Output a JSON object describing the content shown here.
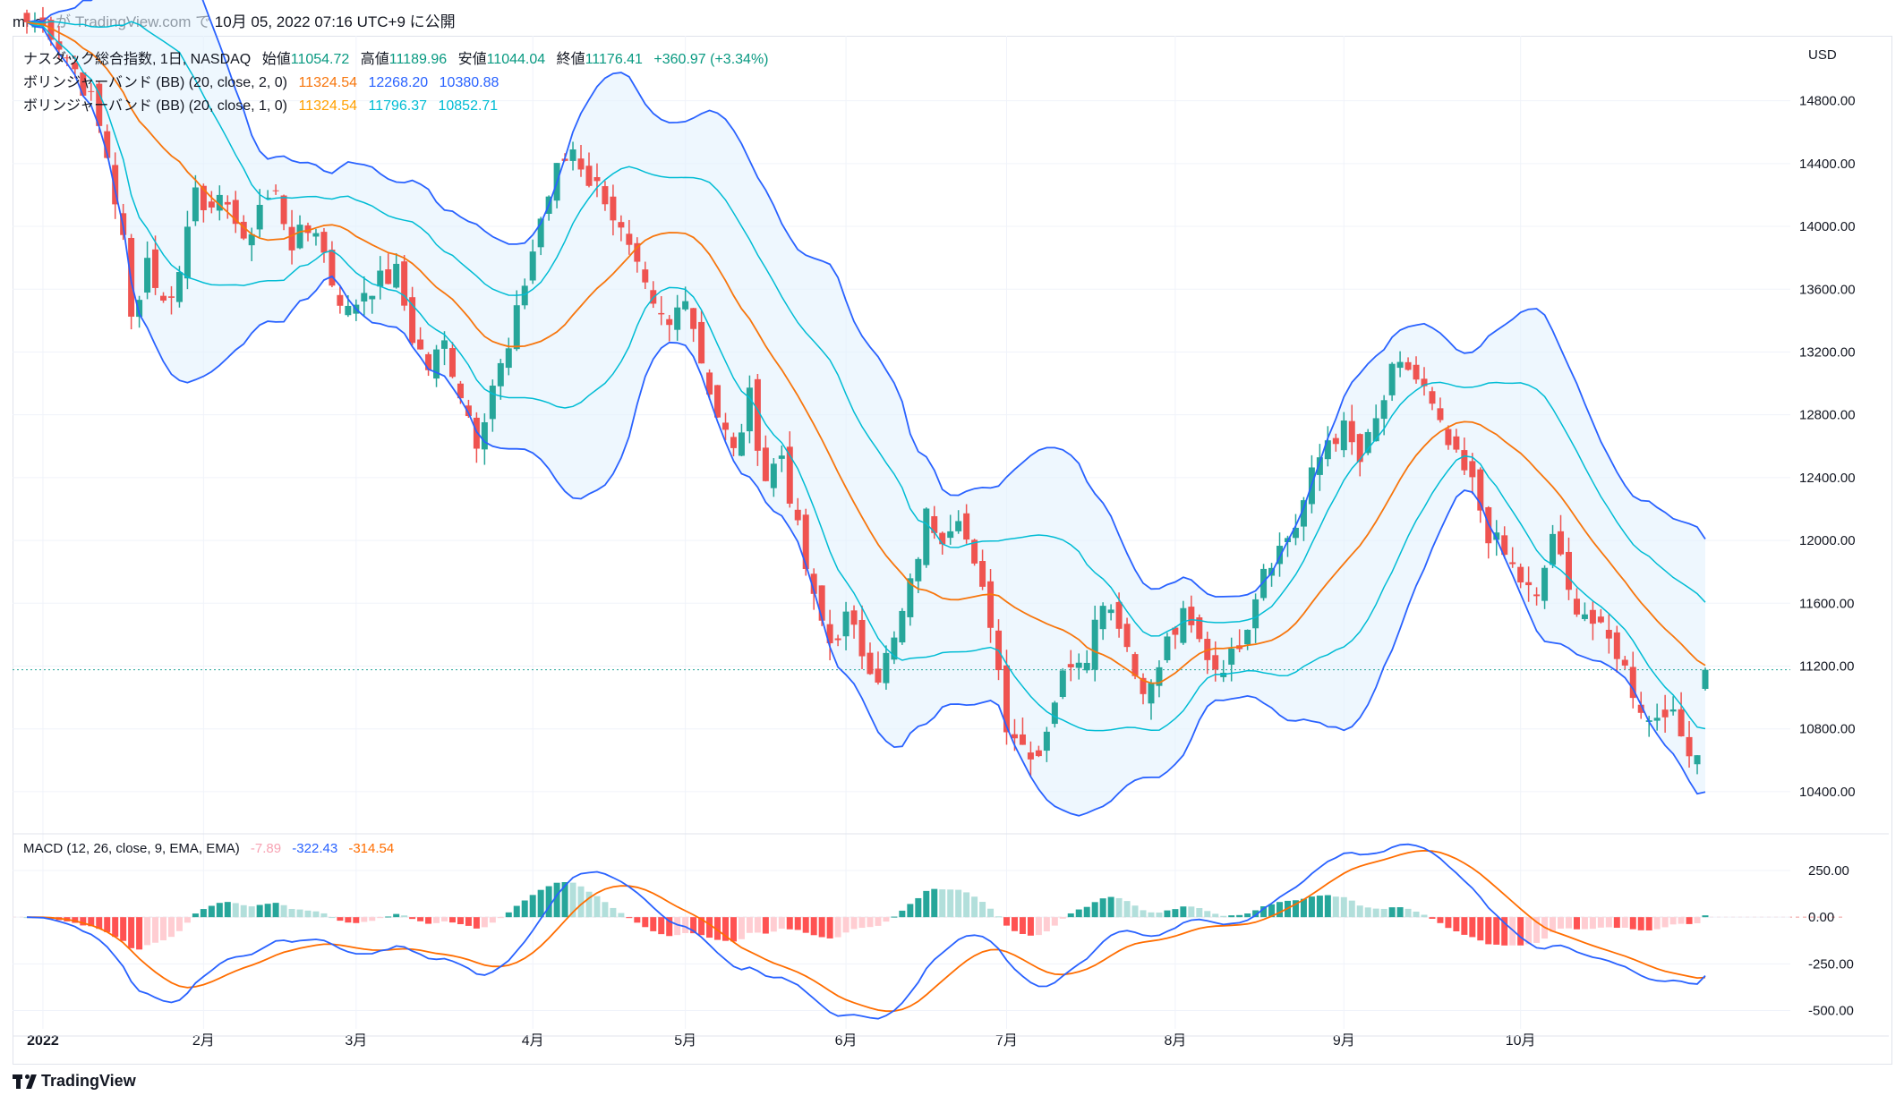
{
  "caption": "mf-aa が TradingView.com で 10月 05, 2022 07:16 UTC+9 に公開",
  "footer": {
    "brand": "TradingView",
    "logo_icon": "tradingview-logo-icon"
  },
  "legend": {
    "symbol": "ナスダック総合指数, 1日, NASDAQ",
    "open_label": "始値",
    "open": "11054.72",
    "high_label": "高値",
    "high": "11189.96",
    "low_label": "安値",
    "low": "11044.04",
    "close_label": "終値",
    "close": "11176.41",
    "change": "+360.97 (+3.34%)",
    "bb2_label": "ボリンジャーバンド (BB) (20, close, 2, 0)",
    "bb2_basis": "11324.54",
    "bb2_upper": "12268.20",
    "bb2_lower": "10380.88",
    "bb1_label": "ボリンジャーバンド (BB) (20, close, 1, 0)",
    "bb1_basis": "11324.54",
    "bb1_upper": "11796.37",
    "bb1_lower": "10852.71",
    "macd_label": "MACD (12, 26, close, 9, EMA, EMA)",
    "macd_hist": "-7.89",
    "macd_line": "-322.43",
    "macd_signal": "-314.54"
  },
  "colors": {
    "up": "#26a69a",
    "down": "#ef5350",
    "bb2": "#2962ff",
    "bb1": "#00bcd4",
    "basis": "#f7760d",
    "fill": "#e3f2fd",
    "macd": "#2962ff",
    "signal": "#ff6d00",
    "hist_up_strong": "#26a69a",
    "hist_up_weak": "#b2dfdb",
    "hist_down_strong": "#ff5252",
    "hist_down_weak": "#ffcdd2",
    "grid": "#f0f3fa"
  },
  "chart_data": {
    "type": "candlestick",
    "currency": "USD",
    "price_axis_ticks": [
      "14800.00",
      "14400.00",
      "14000.00",
      "13600.00",
      "13200.00",
      "12800.00",
      "12400.00",
      "12000.00",
      "11600.00",
      "11200.00",
      "10800.00",
      "10400.00"
    ],
    "price_ylim": [
      10200,
      15100
    ],
    "macd_axis_ticks": [
      "250.00",
      "0.00",
      "-250.00",
      "-500.00"
    ],
    "macd_ylim": [
      -550,
      360
    ],
    "time_axis_labels": [
      "2022",
      "2月",
      "3月",
      "4月",
      "5月",
      "6月",
      "7月",
      "8月",
      "9月",
      "10月"
    ],
    "time_axis_index": [
      2,
      22,
      41,
      63,
      82,
      102,
      122,
      143,
      164,
      186
    ],
    "last_price": 11176.41,
    "close_anchors": [
      [
        0,
        15300
      ],
      [
        3,
        15250
      ],
      [
        6,
        15000
      ],
      [
        8,
        14800
      ],
      [
        10,
        14450
      ],
      [
        12,
        13900
      ],
      [
        13,
        13400
      ],
      [
        15,
        13800
      ],
      [
        17,
        13500
      ],
      [
        19,
        13700
      ],
      [
        21,
        14300
      ],
      [
        23,
        14050
      ],
      [
        25,
        14200
      ],
      [
        27,
        13850
      ],
      [
        29,
        14150
      ],
      [
        31,
        14200
      ],
      [
        33,
        13900
      ],
      [
        36,
        14000
      ],
      [
        38,
        13650
      ],
      [
        40,
        13450
      ],
      [
        42,
        13600
      ],
      [
        44,
        13650
      ],
      [
        46,
        13700
      ],
      [
        48,
        13300
      ],
      [
        50,
        13100
      ],
      [
        52,
        13250
      ],
      [
        54,
        12950
      ],
      [
        56,
        12650
      ],
      [
        58,
        13000
      ],
      [
        60,
        13200
      ],
      [
        62,
        13650
      ],
      [
        64,
        14050
      ],
      [
        66,
        14350
      ],
      [
        68,
        14500
      ],
      [
        70,
        14300
      ],
      [
        72,
        14200
      ],
      [
        74,
        13950
      ],
      [
        76,
        13700
      ],
      [
        78,
        13450
      ],
      [
        80,
        13350
      ],
      [
        82,
        13600
      ],
      [
        84,
        13150
      ],
      [
        86,
        12800
      ],
      [
        88,
        12550
      ],
      [
        90,
        12900
      ],
      [
        92,
        12400
      ],
      [
        94,
        12550
      ],
      [
        96,
        12050
      ],
      [
        98,
        11600
      ],
      [
        100,
        11350
      ],
      [
        102,
        11500
      ],
      [
        104,
        11300
      ],
      [
        106,
        11150
      ],
      [
        108,
        11350
      ],
      [
        110,
        11700
      ],
      [
        112,
        12150
      ],
      [
        114,
        12050
      ],
      [
        116,
        12200
      ],
      [
        118,
        11800
      ],
      [
        120,
        11500
      ],
      [
        122,
        10850
      ],
      [
        124,
        10700
      ],
      [
        126,
        10650
      ],
      [
        128,
        11000
      ],
      [
        130,
        11250
      ],
      [
        132,
        11300
      ],
      [
        134,
        11650
      ],
      [
        136,
        11500
      ],
      [
        138,
        11150
      ],
      [
        140,
        11050
      ],
      [
        142,
        11350
      ],
      [
        144,
        11500
      ],
      [
        146,
        11350
      ],
      [
        148,
        11200
      ],
      [
        150,
        11250
      ],
      [
        152,
        11500
      ],
      [
        154,
        11850
      ],
      [
        156,
        11950
      ],
      [
        158,
        12100
      ],
      [
        160,
        12400
      ],
      [
        162,
        12650
      ],
      [
        164,
        12700
      ],
      [
        166,
        12500
      ],
      [
        168,
        12750
      ],
      [
        170,
        13050
      ],
      [
        172,
        13100
      ],
      [
        174,
        12950
      ],
      [
        176,
        12700
      ],
      [
        178,
        12500
      ],
      [
        180,
        12350
      ],
      [
        182,
        12050
      ],
      [
        184,
        11900
      ],
      [
        186,
        11750
      ],
      [
        188,
        11600
      ],
      [
        190,
        12050
      ],
      [
        192,
        11650
      ],
      [
        194,
        11550
      ],
      [
        196,
        11400
      ],
      [
        198,
        11300
      ],
      [
        200,
        11050
      ],
      [
        202,
        10850
      ],
      [
        204,
        10950
      ],
      [
        206,
        10750
      ],
      [
        208,
        10650
      ],
      [
        209,
        11176
      ]
    ],
    "series": [
      {
        "name": "ナスダック総合指数",
        "kind": "ohlc"
      },
      {
        "name": "BB (20, 2) upper/basis/lower",
        "kind": "bands"
      },
      {
        "name": "BB (20, 1) upper/lower",
        "kind": "bands"
      },
      {
        "name": "MACD (12, 26, 9)",
        "kind": "macd"
      }
    ]
  }
}
